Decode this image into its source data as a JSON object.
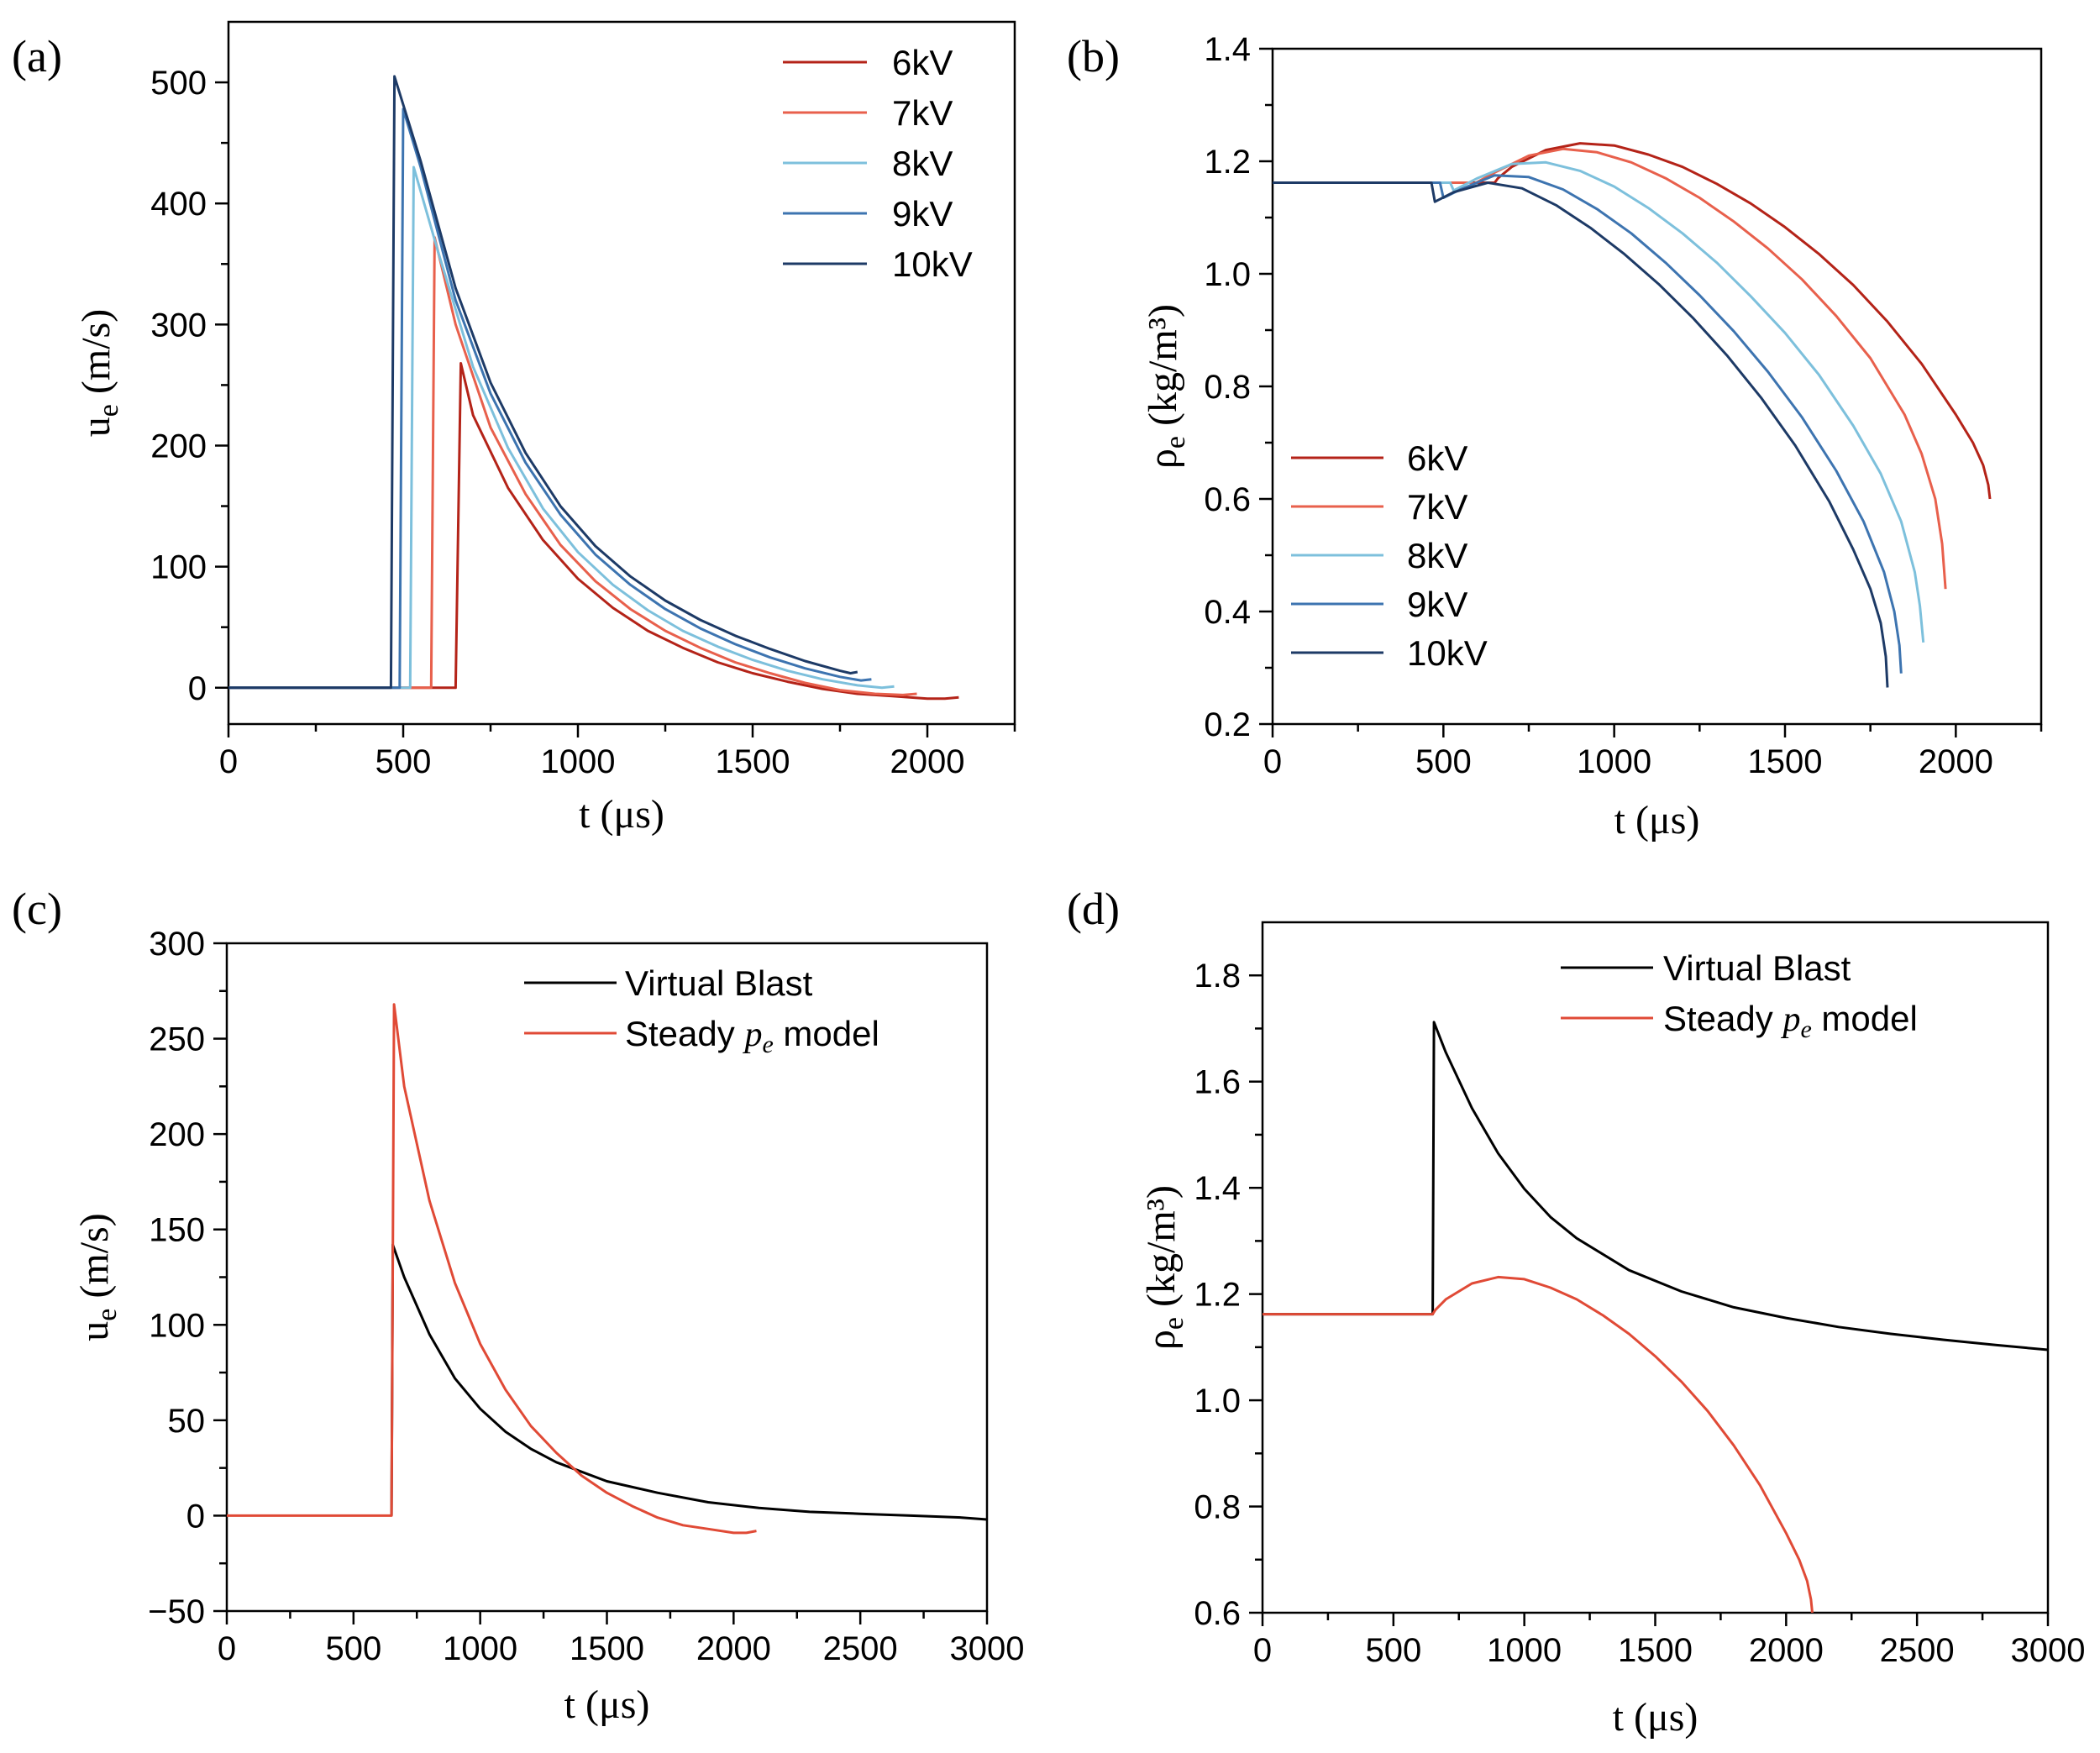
{
  "colors": {
    "6kV": "#b42318",
    "7kV": "#e8604c",
    "8kV": "#7dc0dc",
    "9kV": "#3d74b0",
    "10kV": "#1d3a66",
    "virtual_blast": "#000000",
    "steady_model": "#e04a36"
  },
  "chart_data": [
    {
      "panel": "(a)",
      "type": "line",
      "xlabel": "t (μs)",
      "ylabel": "u_e (m/s)",
      "xlim": [
        0,
        2250
      ],
      "ylim": [
        -30,
        550
      ],
      "xticks": [
        0,
        500,
        1000,
        1500,
        2000
      ],
      "yticks": [
        0,
        100,
        200,
        300,
        400,
        500
      ],
      "legend_position": "top-right",
      "series": [
        {
          "name": "6kV",
          "color_key": "6kV",
          "x": [
            0,
            650,
            650,
            665,
            700,
            800,
            900,
            1000,
            1100,
            1200,
            1300,
            1400,
            1500,
            1600,
            1700,
            1800,
            1900,
            2000,
            2050,
            2090
          ],
          "y": [
            0,
            0,
            0,
            268,
            225,
            165,
            122,
            90,
            66,
            47,
            33,
            21,
            12,
            5,
            -1,
            -5,
            -7,
            -9,
            -9,
            -8
          ]
        },
        {
          "name": "7kV",
          "color_key": "7kV",
          "x": [
            0,
            580,
            580,
            590,
            650,
            750,
            850,
            950,
            1050,
            1150,
            1250,
            1350,
            1450,
            1550,
            1650,
            1750,
            1850,
            1930,
            1970
          ],
          "y": [
            0,
            0,
            0,
            372,
            300,
            215,
            160,
            118,
            88,
            65,
            47,
            33,
            21,
            12,
            4,
            -2,
            -5,
            -6,
            -5
          ]
        },
        {
          "name": "8kV",
          "color_key": "8kV",
          "x": [
            0,
            520,
            520,
            530,
            600,
            700,
            800,
            900,
            1000,
            1100,
            1200,
            1300,
            1400,
            1500,
            1600,
            1700,
            1800,
            1870,
            1905
          ],
          "y": [
            0,
            0,
            0,
            430,
            360,
            265,
            198,
            148,
            112,
            85,
            64,
            47,
            34,
            23,
            14,
            7,
            2,
            0,
            1
          ]
        },
        {
          "name": "9kV",
          "color_key": "9kV",
          "x": [
            0,
            490,
            490,
            500,
            550,
            650,
            750,
            850,
            950,
            1050,
            1150,
            1250,
            1350,
            1450,
            1550,
            1650,
            1750,
            1810,
            1840
          ],
          "y": [
            0,
            0,
            0,
            478,
            430,
            320,
            243,
            186,
            143,
            110,
            85,
            65,
            49,
            36,
            25,
            16,
            9,
            6,
            7
          ]
        },
        {
          "name": "10kV",
          "color_key": "10kV",
          "x": [
            0,
            465,
            465,
            475,
            550,
            650,
            750,
            850,
            950,
            1050,
            1150,
            1250,
            1350,
            1450,
            1550,
            1650,
            1750,
            1780,
            1800
          ],
          "y": [
            0,
            0,
            0,
            505,
            435,
            330,
            252,
            194,
            150,
            117,
            92,
            72,
            56,
            43,
            32,
            22,
            14,
            12,
            13
          ]
        }
      ]
    },
    {
      "panel": "(b)",
      "type": "line",
      "xlabel": "t (μs)",
      "ylabel": "ρ_e (kg/m³)",
      "xlim": [
        0,
        2250
      ],
      "ylim": [
        0.2,
        1.4
      ],
      "xticks": [
        0,
        500,
        1000,
        1500,
        2000
      ],
      "yticks": [
        0.2,
        0.4,
        0.6,
        0.8,
        1.0,
        1.2,
        1.4
      ],
      "yticklabels": [
        "0.2",
        "0.4",
        "0.6",
        "0.8",
        "1.0",
        "1.2",
        "1.4"
      ],
      "legend_position": "bottom-left",
      "series": [
        {
          "name": "6kV",
          "color_key": "6kV",
          "x": [
            0,
            650,
            660,
            700,
            800,
            900,
            1000,
            1100,
            1200,
            1300,
            1400,
            1500,
            1600,
            1700,
            1800,
            1900,
            2000,
            2050,
            2080,
            2095,
            2100
          ],
          "y": [
            1.162,
            1.162,
            1.17,
            1.19,
            1.22,
            1.232,
            1.228,
            1.212,
            1.19,
            1.16,
            1.125,
            1.083,
            1.035,
            0.98,
            0.915,
            0.84,
            0.75,
            0.7,
            0.66,
            0.625,
            0.6
          ]
        },
        {
          "name": "7kV",
          "color_key": "7kV",
          "x": [
            0,
            580,
            590,
            650,
            750,
            850,
            950,
            1050,
            1150,
            1250,
            1350,
            1450,
            1550,
            1650,
            1750,
            1850,
            1900,
            1940,
            1960,
            1970
          ],
          "y": [
            1.162,
            1.162,
            1.16,
            1.18,
            1.21,
            1.222,
            1.216,
            1.198,
            1.17,
            1.135,
            1.093,
            1.045,
            0.99,
            0.925,
            0.85,
            0.75,
            0.68,
            0.6,
            0.52,
            0.44
          ]
        },
        {
          "name": "8kV",
          "color_key": "8kV",
          "x": [
            0,
            520,
            530,
            600,
            700,
            800,
            900,
            1000,
            1100,
            1200,
            1300,
            1400,
            1500,
            1600,
            1700,
            1780,
            1840,
            1880,
            1895,
            1905
          ],
          "y": [
            1.162,
            1.162,
            1.148,
            1.17,
            1.195,
            1.198,
            1.183,
            1.155,
            1.117,
            1.072,
            1.02,
            0.96,
            0.895,
            0.82,
            0.73,
            0.645,
            0.56,
            0.47,
            0.41,
            0.345
          ]
        },
        {
          "name": "9kV",
          "color_key": "9kV",
          "x": [
            0,
            490,
            500,
            550,
            650,
            750,
            850,
            950,
            1050,
            1150,
            1250,
            1350,
            1450,
            1550,
            1650,
            1730,
            1790,
            1820,
            1835,
            1840
          ],
          "y": [
            1.162,
            1.162,
            1.135,
            1.15,
            1.175,
            1.172,
            1.15,
            1.115,
            1.072,
            1.02,
            0.962,
            0.898,
            0.826,
            0.745,
            0.65,
            0.56,
            0.47,
            0.4,
            0.34,
            0.29
          ]
        },
        {
          "name": "10kV",
          "color_key": "10kV",
          "x": [
            0,
            465,
            475,
            530,
            630,
            730,
            830,
            930,
            1030,
            1130,
            1230,
            1330,
            1430,
            1530,
            1630,
            1700,
            1750,
            1780,
            1795,
            1800
          ],
          "y": [
            1.162,
            1.162,
            1.128,
            1.145,
            1.162,
            1.152,
            1.122,
            1.082,
            1.035,
            0.982,
            0.922,
            0.855,
            0.78,
            0.695,
            0.595,
            0.51,
            0.44,
            0.38,
            0.32,
            0.265
          ]
        }
      ]
    },
    {
      "panel": "(c)",
      "type": "line",
      "xlabel": "t (μs)",
      "ylabel": "u_e (m/s)",
      "xlim": [
        0,
        3000
      ],
      "ylim": [
        -50,
        300
      ],
      "xticks": [
        0,
        500,
        1000,
        1500,
        2000,
        2500,
        3000
      ],
      "yticks": [
        -50,
        0,
        50,
        100,
        150,
        200,
        250,
        300
      ],
      "yticklabels": [
        "−50",
        "0",
        "50",
        "100",
        "150",
        "200",
        "250",
        "300"
      ],
      "legend_position": "top-right",
      "series": [
        {
          "name": "Virtual Blast",
          "color_key": "virtual_blast",
          "x": [
            650,
            655,
            700,
            800,
            900,
            1000,
            1100,
            1200,
            1300,
            1400,
            1500,
            1700,
            1900,
            2100,
            2300,
            2500,
            2700,
            2900,
            3000
          ],
          "y": [
            0,
            142,
            125,
            95,
            72,
            56,
            44,
            35,
            28,
            23,
            18,
            12,
            7,
            4,
            2,
            1,
            0,
            -1,
            -2
          ]
        },
        {
          "name": "Steady pe model",
          "color_key": "steady_model",
          "x": [
            0,
            650,
            650,
            660,
            700,
            800,
            900,
            1000,
            1100,
            1200,
            1300,
            1400,
            1500,
            1600,
            1700,
            1800,
            1900,
            2000,
            2050,
            2090
          ],
          "y": [
            0,
            0,
            0,
            268,
            225,
            165,
            122,
            90,
            66,
            47,
            33,
            21,
            12,
            5,
            -1,
            -5,
            -7,
            -9,
            -9,
            -8
          ]
        }
      ]
    },
    {
      "panel": "(d)",
      "type": "line",
      "xlabel": "t (μs)",
      "ylabel": "ρ_e (kg/m³)",
      "xlim": [
        0,
        3000
      ],
      "ylim": [
        0.6,
        1.9
      ],
      "xticks": [
        0,
        500,
        1000,
        1500,
        2000,
        2500,
        3000
      ],
      "yticks": [
        0.6,
        0.8,
        1.0,
        1.2,
        1.4,
        1.6,
        1.8
      ],
      "yticklabels": [
        "0.6",
        "0.8",
        "1.0",
        "1.2",
        "1.4",
        "1.6",
        "1.8"
      ],
      "legend_position": "top-right",
      "series": [
        {
          "name": "Virtual Blast",
          "color_key": "virtual_blast",
          "x": [
            0,
            650,
            655,
            700,
            800,
            900,
            1000,
            1100,
            1200,
            1400,
            1600,
            1800,
            2000,
            2200,
            2400,
            2600,
            2800,
            3000
          ],
          "y": [
            1.162,
            1.162,
            1.712,
            1.655,
            1.55,
            1.465,
            1.398,
            1.345,
            1.305,
            1.245,
            1.205,
            1.175,
            1.155,
            1.138,
            1.125,
            1.114,
            1.104,
            1.095
          ]
        },
        {
          "name": "Steady pe model",
          "color_key": "steady_model",
          "x": [
            0,
            650,
            660,
            700,
            800,
            900,
            1000,
            1100,
            1200,
            1300,
            1400,
            1500,
            1600,
            1700,
            1800,
            1900,
            2000,
            2050,
            2080,
            2095,
            2100
          ],
          "y": [
            1.162,
            1.162,
            1.17,
            1.19,
            1.22,
            1.232,
            1.228,
            1.212,
            1.19,
            1.16,
            1.125,
            1.083,
            1.035,
            0.98,
            0.915,
            0.84,
            0.75,
            0.7,
            0.66,
            0.625,
            0.6
          ]
        }
      ]
    }
  ],
  "legend_labels": {
    "a": [
      "6kV",
      "7kV",
      "8kV",
      "9kV",
      "10kV"
    ],
    "b": [
      "6kV",
      "7kV",
      "8kV",
      "9kV",
      "10kV"
    ],
    "c": [
      "Virtual Blast",
      "Steady pe model"
    ],
    "d": [
      "Virtual Blast",
      "Steady pe model"
    ]
  }
}
